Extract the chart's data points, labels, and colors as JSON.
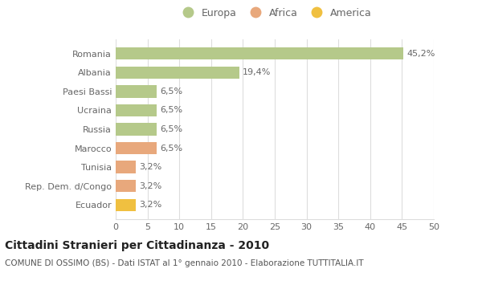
{
  "categories": [
    "Romania",
    "Albania",
    "Paesi Bassi",
    "Ucraina",
    "Russia",
    "Marocco",
    "Tunisia",
    "Rep. Dem. d/Congo",
    "Ecuador"
  ],
  "values": [
    45.2,
    19.4,
    6.5,
    6.5,
    6.5,
    6.5,
    3.2,
    3.2,
    3.2
  ],
  "labels": [
    "45,2%",
    "19,4%",
    "6,5%",
    "6,5%",
    "6,5%",
    "6,5%",
    "3,2%",
    "3,2%",
    "3,2%"
  ],
  "colors": [
    "#b5c98a",
    "#b5c98a",
    "#b5c98a",
    "#b5c98a",
    "#b5c98a",
    "#e8a87c",
    "#e8a87c",
    "#e8a87c",
    "#f0c040"
  ],
  "legend": [
    {
      "label": "Europa",
      "color": "#b5c98a"
    },
    {
      "label": "Africa",
      "color": "#e8a87c"
    },
    {
      "label": "America",
      "color": "#f0c040"
    }
  ],
  "xlim": [
    0,
    50
  ],
  "xticks": [
    0,
    5,
    10,
    15,
    20,
    25,
    30,
    35,
    40,
    45,
    50
  ],
  "title": "Cittadini Stranieri per Cittadinanza - 2010",
  "subtitle": "COMUNE DI OSSIMO (BS) - Dati ISTAT al 1° gennaio 2010 - Elaborazione TUTTITALIA.IT",
  "bg_color": "#ffffff",
  "grid_color": "#dddddd",
  "bar_height": 0.65,
  "label_fontsize": 8,
  "ytick_fontsize": 8,
  "xtick_fontsize": 8,
  "title_fontsize": 10,
  "subtitle_fontsize": 7.5
}
